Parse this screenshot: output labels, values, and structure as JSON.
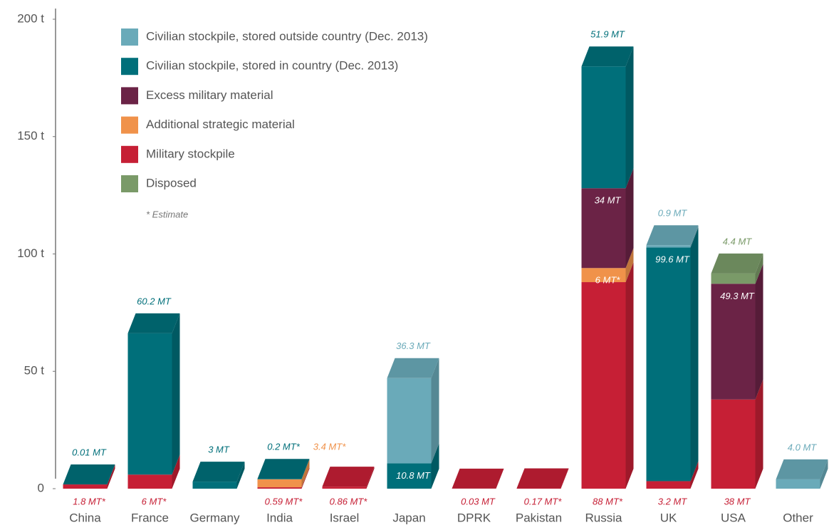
{
  "chart_data": {
    "type": "bar3d_stacked",
    "note": "* Estimate",
    "categories": [
      "China",
      "France",
      "Germany",
      "India",
      "Israel",
      "Japan",
      "DPRK",
      "Pakistan",
      "Russia",
      "UK",
      "USA",
      "Other"
    ],
    "series": [
      {
        "name": "Civilian stockpile, stored outside country (Dec. 2013)",
        "color": "#6aaab9",
        "values": [
          null,
          null,
          null,
          null,
          null,
          36.3,
          null,
          null,
          null,
          0.9,
          null,
          4.0
        ],
        "value_labels": [
          null,
          null,
          null,
          null,
          null,
          "36.3 MT",
          null,
          null,
          null,
          "0.9 MT",
          null,
          "4.0 MT"
        ]
      },
      {
        "name": "Civilian stockpile, stored in country (Dec. 2013)",
        "color": "#006f7a",
        "values": [
          0.01,
          60.2,
          3,
          0.2,
          null,
          10.8,
          null,
          null,
          51.9,
          99.6,
          null,
          null
        ],
        "value_labels": [
          "0.01 MT",
          "60.2 MT",
          "3 MT",
          "0.2 MT*",
          null,
          "10.8 MT",
          null,
          null,
          "51.9 MT",
          "99.6 MT",
          null,
          null
        ]
      },
      {
        "name": "Excess military material",
        "color": "#6b2346",
        "values": [
          null,
          null,
          null,
          null,
          null,
          null,
          null,
          null,
          34,
          null,
          49.3,
          null
        ],
        "value_labels": [
          null,
          null,
          null,
          null,
          null,
          null,
          null,
          null,
          "34  MT",
          null,
          "49.3 MT",
          null
        ]
      },
      {
        "name": "Additional strategic material",
        "color": "#f0924a",
        "values": [
          null,
          null,
          null,
          3.4,
          null,
          null,
          null,
          null,
          6,
          null,
          null,
          null
        ],
        "value_labels": [
          null,
          null,
          null,
          "3.4 MT*",
          null,
          null,
          null,
          null,
          "6 MT*",
          null,
          null,
          null
        ]
      },
      {
        "name": "Military stockpile",
        "color": "#c61f35",
        "values": [
          1.8,
          6,
          null,
          0.59,
          0.86,
          null,
          0.03,
          0.17,
          88,
          3.2,
          38,
          null
        ],
        "value_labels": [
          "1.8 MT*",
          "6 MT*",
          null,
          "0.59 MT*",
          "0.86 MT*",
          null,
          "0.03 MT",
          "0.17 MT*",
          "88 MT*",
          "3.2 MT",
          "38 MT",
          null
        ]
      },
      {
        "name": "Disposed",
        "color": "#7a9a68",
        "values": [
          null,
          null,
          null,
          null,
          null,
          null,
          null,
          null,
          null,
          null,
          4.4,
          null
        ],
        "value_labels": [
          null,
          null,
          null,
          null,
          null,
          null,
          null,
          null,
          null,
          null,
          "4.4 MT",
          null
        ]
      }
    ],
    "ylim": [
      0,
      200
    ],
    "yticks": [
      0,
      {
        "value": 50,
        "label": "50 t"
      },
      {
        "value": 100,
        "label": "100 t"
      },
      {
        "value": 150,
        "label": "150 t"
      },
      {
        "value": 200,
        "label": "200 t"
      }
    ]
  }
}
